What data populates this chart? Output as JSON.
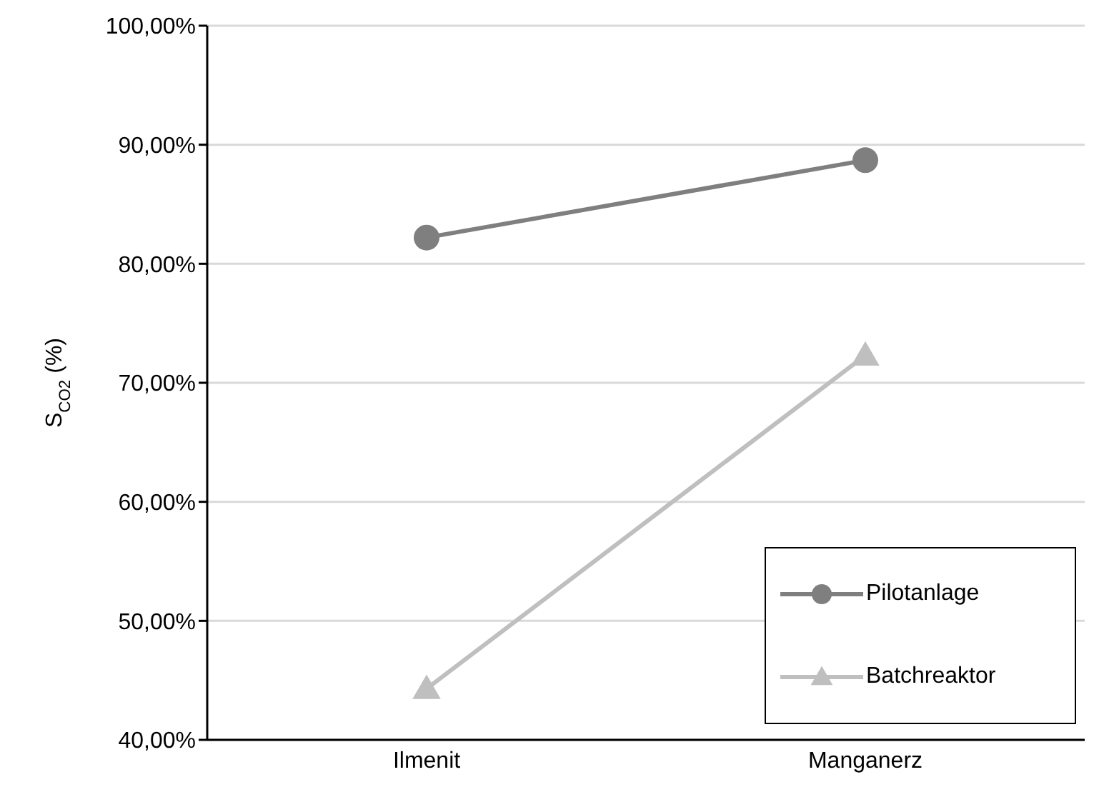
{
  "chart_data": {
    "type": "line",
    "ylabel": "S$_{CO2}$ (%)",
    "categories": [
      "Ilmenit",
      "Manganerz"
    ],
    "series": [
      {
        "name": "Pilotanlage",
        "color": "#7f7f7f",
        "values": [
          82.2,
          88.7
        ],
        "marker": "circle"
      },
      {
        "name": "Batchreaktor",
        "color": "#bfbfbf",
        "values": [
          44.3,
          72.3
        ],
        "marker": "triangle"
      }
    ],
    "ylim": [
      40,
      100
    ],
    "yticks": [
      {
        "value": 40,
        "label": "40,00%"
      },
      {
        "value": 50,
        "label": "50,00%"
      },
      {
        "value": 60,
        "label": "60,00%"
      },
      {
        "value": 70,
        "label": "70,00%"
      },
      {
        "value": 80,
        "label": "80,00%"
      },
      {
        "value": 90,
        "label": "90,00%"
      },
      {
        "value": 100,
        "label": "100,00%"
      }
    ],
    "grid": "y",
    "legend": "bottom right",
    "line_style": "solid"
  }
}
